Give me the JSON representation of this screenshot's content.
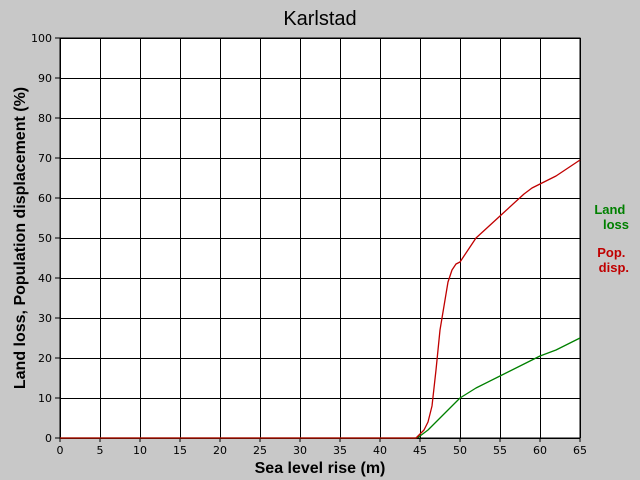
{
  "chart_data": {
    "type": "line",
    "title": "Karlstad",
    "xlabel": "Sea level rise (m)",
    "ylabel": "Land loss, Population displacement (%)",
    "xlim": [
      0,
      65
    ],
    "ylim": [
      0,
      100
    ],
    "xticks": [
      0,
      5,
      10,
      15,
      20,
      25,
      30,
      35,
      40,
      45,
      50,
      55,
      60,
      65
    ],
    "yticks": [
      0,
      10,
      20,
      30,
      40,
      50,
      60,
      70,
      80,
      90,
      100
    ],
    "grid": true,
    "legend_position": "right",
    "series": [
      {
        "name": "Land loss",
        "legend_lines": [
          "Land",
          "loss"
        ],
        "color": "#008000",
        "x": [
          0,
          44.5,
          45,
          46,
          47,
          48,
          49,
          50,
          52,
          55,
          58,
          60,
          62,
          65
        ],
        "y": [
          0,
          0,
          0.5,
          2,
          4,
          6,
          8,
          10,
          12.5,
          15.5,
          18.5,
          20.5,
          22,
          25
        ]
      },
      {
        "name": "Pop. disp.",
        "legend_lines": [
          "Pop.",
          "disp."
        ],
        "color": "#c00000",
        "x": [
          0,
          44.5,
          45,
          45.5,
          46,
          46.5,
          47,
          47.5,
          48,
          48.5,
          49,
          49.5,
          50,
          51,
          52,
          55,
          58,
          59,
          60,
          62,
          65
        ],
        "y": [
          0,
          0,
          1,
          2,
          4,
          8,
          17,
          27,
          33,
          39,
          42,
          43.5,
          44,
          47,
          50,
          55.5,
          61,
          62.5,
          63.5,
          65.5,
          69.5
        ]
      }
    ]
  }
}
